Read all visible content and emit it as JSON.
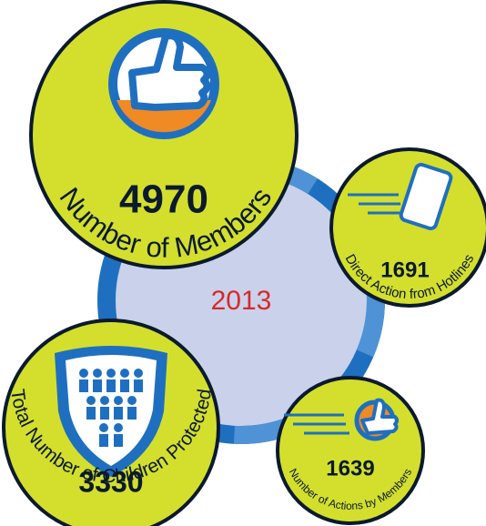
{
  "year": "2013",
  "stats": [
    {
      "value": 4970,
      "label": "Number of Members"
    },
    {
      "value": 1691,
      "label": "Direct Action from Hotlines"
    },
    {
      "value": 3330,
      "label": "Total Number of Children Protected"
    },
    {
      "value": 1639,
      "label": "Number of Actions by Members"
    }
  ]
}
